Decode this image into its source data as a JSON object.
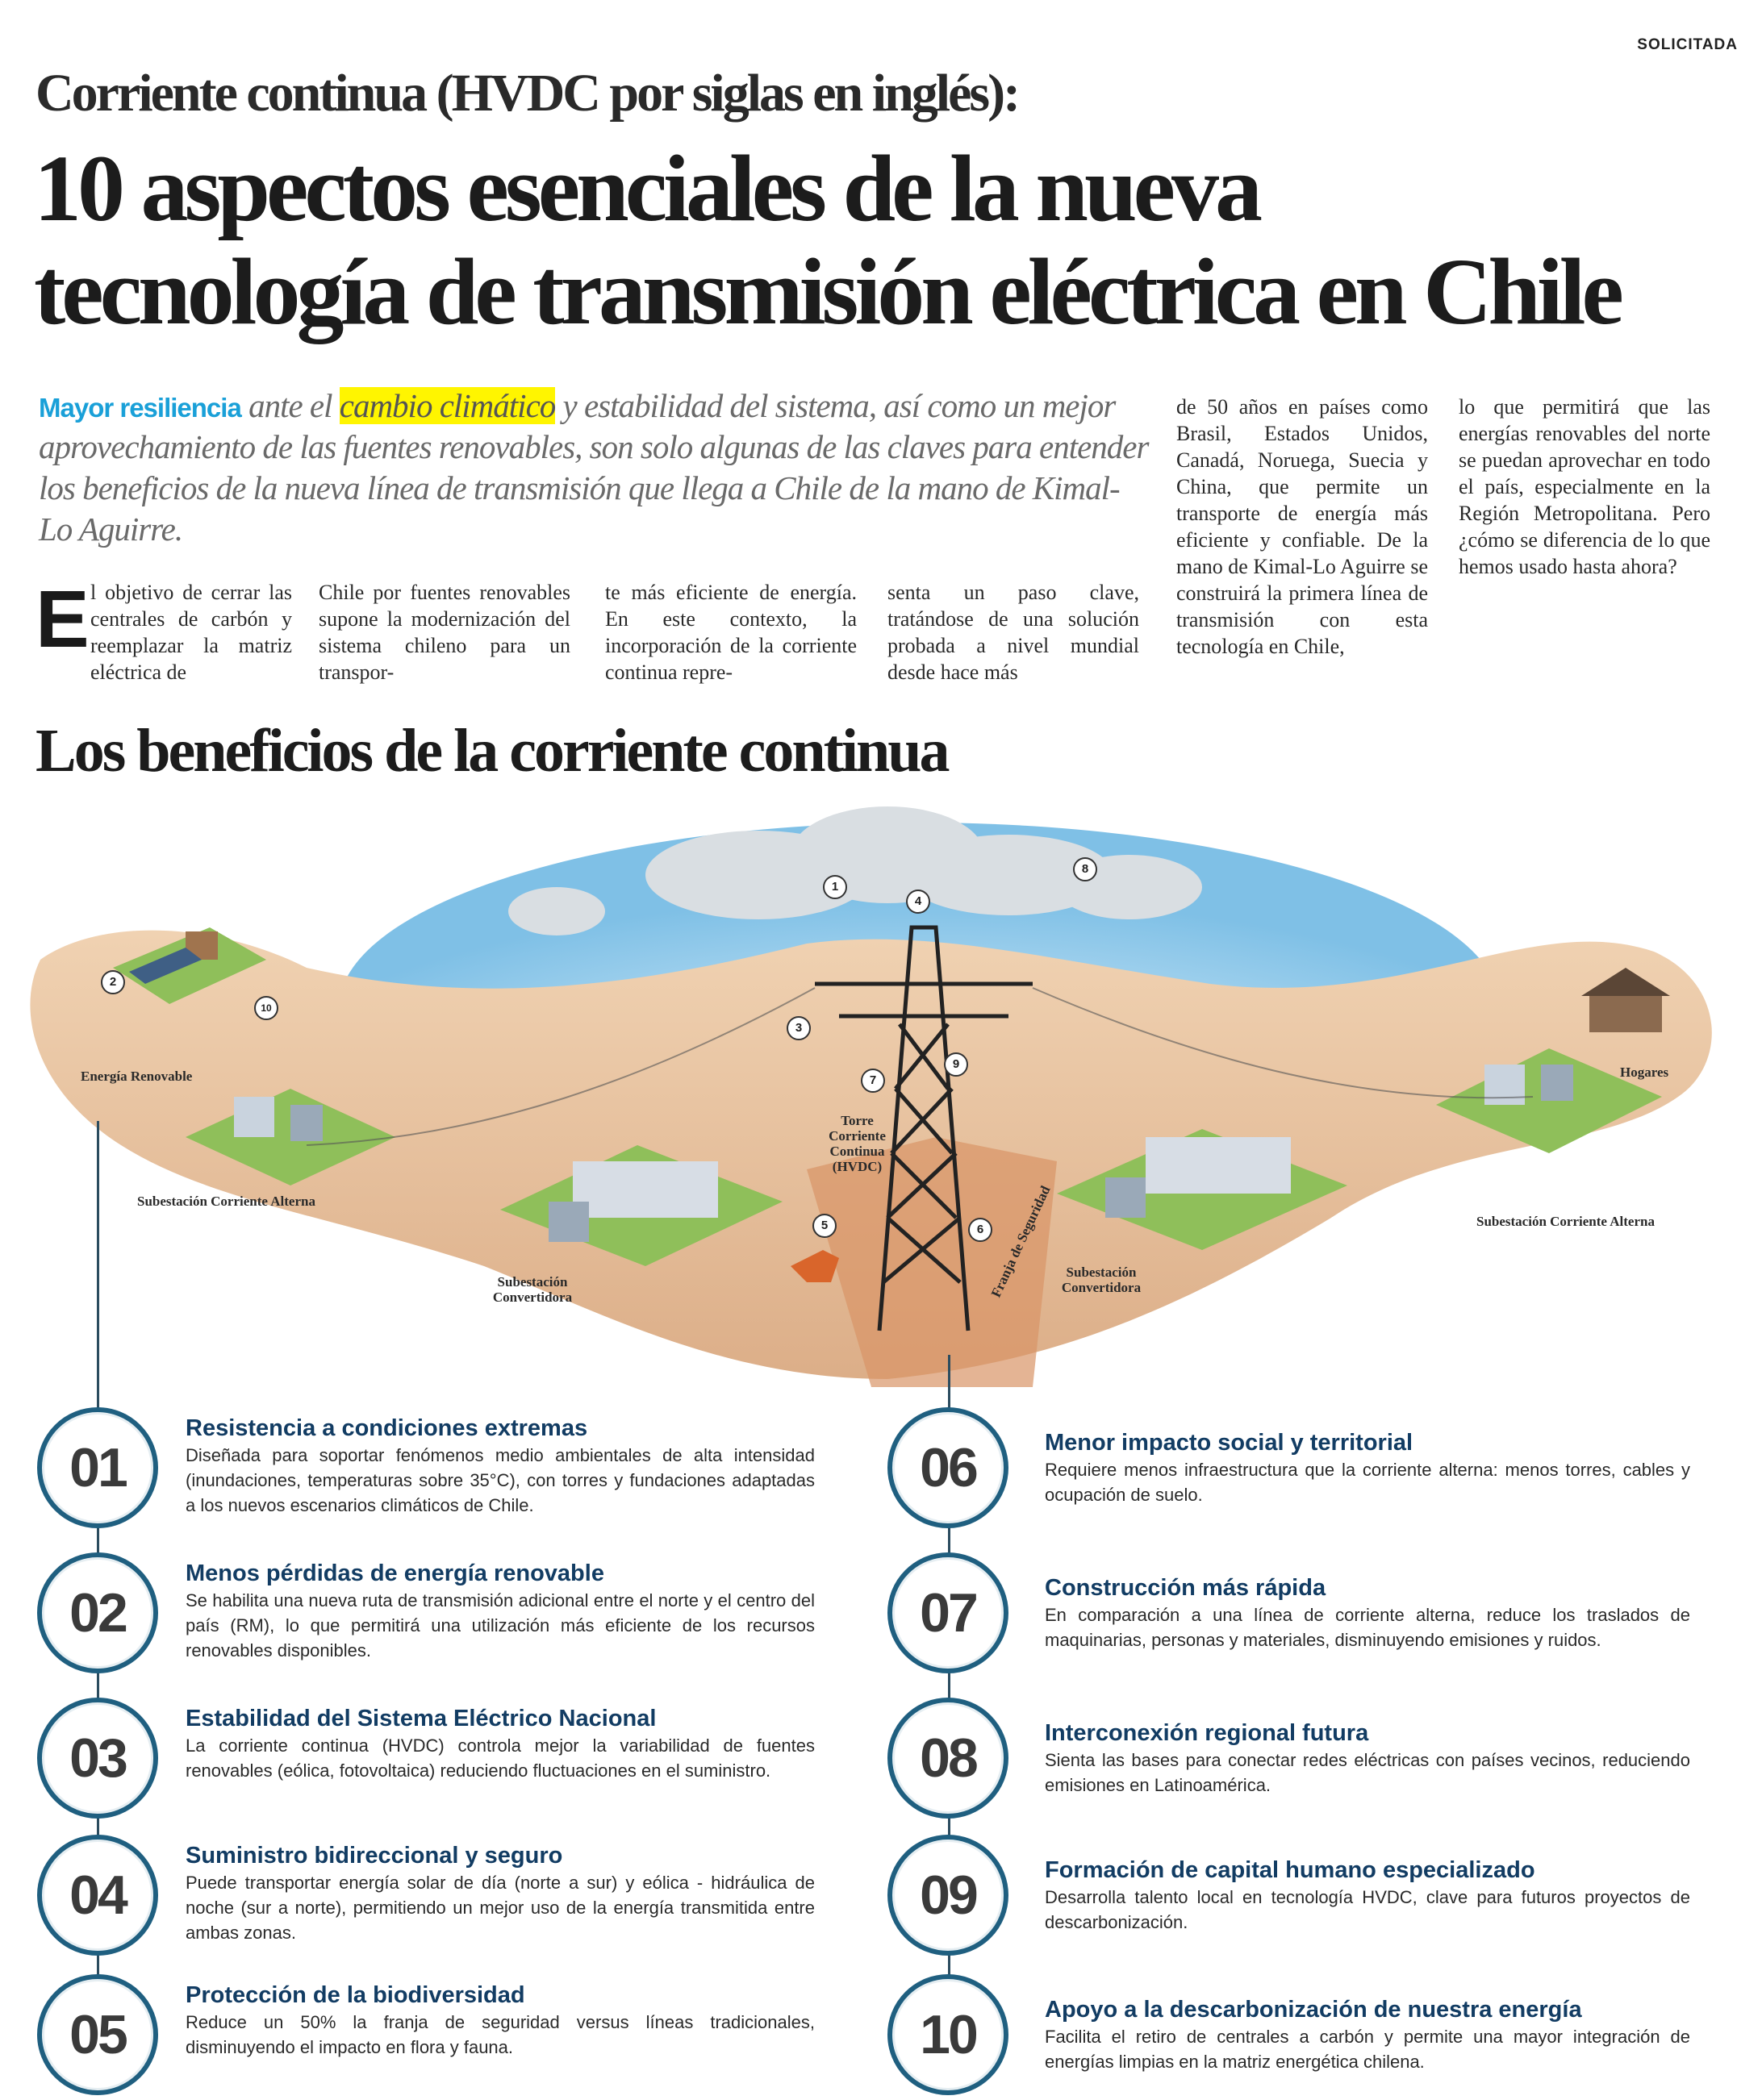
{
  "tag": "SOLICITADA",
  "kicker": "Corriente continua (HVDC por siglas en inglés):",
  "title_line1": "10 aspectos esenciales de la nueva",
  "title_line2": "tecnología de transmisión eléctrica en Chile",
  "lede": {
    "highlight": "Mayor resiliencia",
    "pre": " ante el ",
    "marked": "cambio climático",
    "post": " y estabilidad del sistema, así como un mejor aprovechamiento de las fuentes renovables, son solo algunas de las claves para entender los beneficios de la nueva línea de transmisión que llega a Chile de la mano de Kimal-Lo Aguirre."
  },
  "body": {
    "dropcap": "E",
    "columns": [
      "l objetivo de cerrar las centrales de carbón y reemplazar la matriz eléctrica de",
      "Chile por fuentes renovables supone la modernización del sistema chileno para un transpor-",
      "te más eficiente de energía. En este contexto, la incorporación de la corriente continua repre-",
      "senta un paso clave, tratándose de una solución probada a nivel mundial desde hace más",
      "de 50 años en países como Brasil, Estados Unidos, Canadá, Noruega, Suecia y China, que permite un transporte de energía más eficiente y confiable. De la mano de Kimal-Lo Aguirre se construirá la primera línea de transmisión con esta tecnología en Chile,",
      "lo que permitirá que las energías renovables del norte se puedan aprovechar en todo el país, especialmente en la Región Metropolitana. Pero ¿cómo se diferencia de lo que hemos usado hasta ahora?"
    ]
  },
  "section_title": "Los beneficios de la corriente continua",
  "illustration": {
    "labels": {
      "renovable": "Energía Renovable",
      "sub_alterna_left": "Subestación Corriente Alterna",
      "sub_conv_left": "Subestación Convertidora",
      "torre": "Torre Corriente Continua (HVDC)",
      "franja": "Franja de Seguridad",
      "sub_conv_right": "Subestación Convertidora",
      "sub_alterna_right": "Subestación Corriente Alterna",
      "hogares": "Hogares"
    },
    "markers": [
      "1",
      "2",
      "3",
      "4",
      "5",
      "6",
      "7",
      "8",
      "9",
      "10"
    ],
    "colors": {
      "sky": "#8fc9ea",
      "sand": "#e8c3a0",
      "sand_dark": "#d8a27a",
      "grass": "#8fbf5a",
      "tower": "#222222"
    }
  },
  "benefits": [
    {
      "num": "01",
      "title": "Resistencia a condiciones extremas",
      "text": "Diseñada para soportar fenómenos medio ambientales de alta intensidad (inundaciones, temperaturas sobre 35°C), con torres y fundaciones adaptadas a los nuevos escenarios climáticos de Chile."
    },
    {
      "num": "02",
      "title": "Menos pérdidas de energía renovable",
      "text": "Se habilita una nueva ruta de transmisión adicional entre el norte y el centro del país (RM), lo que permitirá una utilización más eficiente de los recursos renovables disponibles."
    },
    {
      "num": "03",
      "title": "Estabilidad del Sistema Eléctrico Nacional",
      "text": "La corriente continua (HVDC) controla mejor la variabilidad de fuentes renovables (eólica, fotovoltaica) reduciendo fluctuaciones en el suministro."
    },
    {
      "num": "04",
      "title": "Suministro bidireccional y seguro",
      "text": "Puede transportar energía solar de día (norte a sur) y eólica - hidráulica de noche (sur a norte), permitiendo un mejor uso de la energía transmitida entre ambas zonas."
    },
    {
      "num": "05",
      "title": "Protección de la biodiversidad",
      "text": "Reduce un 50% la franja de seguridad versus líneas tradicionales, disminuyendo el impacto en flora y fauna."
    },
    {
      "num": "06",
      "title": "Menor impacto social y territorial",
      "text": "Requiere menos infraestructura que la corriente alterna: menos torres, cables y ocupación de suelo."
    },
    {
      "num": "07",
      "title": "Construcción más rápida",
      "text": "En comparación a una línea de corriente alterna, reduce los traslados de maquinarias, personas y materiales, disminuyendo emisiones y ruidos."
    },
    {
      "num": "08",
      "title": "Interconexión regional futura",
      "text": "Sienta las bases para conectar redes eléctricas con países vecinos, reduciendo emisiones en Latinoamérica."
    },
    {
      "num": "09",
      "title": "Formación de capital humano especializado",
      "text": "Desarrolla talento local en tecnología HVDC, clave para futuros proyectos de descarbonización."
    },
    {
      "num": "10",
      "title": "Apoyo a la descarbonización de nuestra energía",
      "text": "Facilita el retiro de centrales a carbón y permite una mayor integración de energías limpias en la matriz energética chilena."
    }
  ],
  "colors": {
    "accent_blue": "#1aa0d8",
    "title_navy": "#123c63",
    "circle_border": "#1f5f80",
    "highlight": "#fff500"
  }
}
